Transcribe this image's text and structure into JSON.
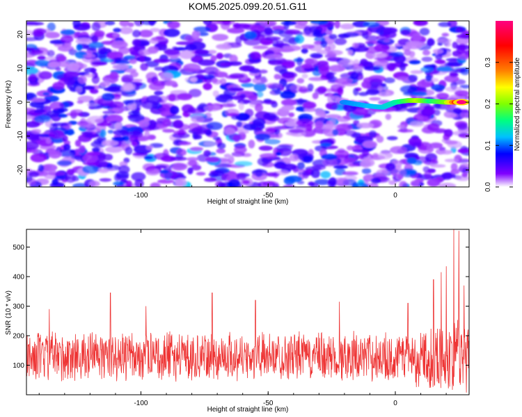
{
  "title": "KOM5.2025.099.20.51.G11",
  "chart_data": [
    {
      "type": "heatmap",
      "xlabel": "Height of straight line (km)",
      "ylabel": "Frequency (Hz)",
      "xlim": [
        -145,
        29
      ],
      "ylim": [
        -25,
        24
      ],
      "x_ticks": [
        -100,
        -50,
        0
      ],
      "y_ticks": [
        -20,
        -10,
        0,
        10,
        20
      ],
      "colorbar": {
        "label": "Normalized spectral amplitude",
        "range": [
          0.0,
          0.4
        ],
        "ticks": [
          0.0,
          0.1,
          0.2,
          0.3
        ],
        "tick_labels": [
          "0.0",
          "0.1",
          "0.2",
          "0.3"
        ],
        "colors": [
          "#ffffff",
          "#8000ff",
          "#0000ff",
          "#00c0ff",
          "#00ff80",
          "#80ff00",
          "#ffff00",
          "#ff8000",
          "#ff0000",
          "#ff0080"
        ]
      },
      "background_level": 0.05,
      "signal_track": [
        {
          "x": -20,
          "y": 0.0,
          "amp": 0.12
        },
        {
          "x": -12,
          "y": -1.0,
          "amp": 0.13
        },
        {
          "x": -5,
          "y": -1.5,
          "amp": 0.14
        },
        {
          "x": 0,
          "y": 0.0,
          "amp": 0.16
        },
        {
          "x": 5,
          "y": 0.5,
          "amp": 0.2
        },
        {
          "x": 9,
          "y": 0.5,
          "amp": 0.24
        },
        {
          "x": 14,
          "y": 0.3,
          "amp": 0.18
        },
        {
          "x": 20,
          "y": 0.0,
          "amp": 0.22
        },
        {
          "x": 26,
          "y": 0.0,
          "amp": 0.4
        }
      ]
    },
    {
      "type": "line",
      "xlabel": "Height of straight line (km)",
      "ylabel": "SNR (10 * v/v)",
      "xlim": [
        -145,
        29
      ],
      "ylim": [
        0,
        560
      ],
      "x_ticks": [
        -100,
        -50,
        0
      ],
      "y_ticks": [
        100,
        200,
        300,
        400,
        500
      ],
      "series": [
        {
          "color": "#ee3333",
          "baseline_mean": 130,
          "baseline_spread": 70,
          "peaks": [
            {
              "x": -136,
              "y": 290
            },
            {
              "x": -112,
              "y": 345
            },
            {
              "x": -98,
              "y": 300
            },
            {
              "x": -72,
              "y": 345
            },
            {
              "x": -55,
              "y": 320
            },
            {
              "x": -22,
              "y": 315
            },
            {
              "x": 5,
              "y": 310
            },
            {
              "x": 15,
              "y": 390
            },
            {
              "x": 18,
              "y": 415
            },
            {
              "x": 20,
              "y": 435
            },
            {
              "x": 23,
              "y": 560
            },
            {
              "x": 25,
              "y": 555
            },
            {
              "x": 27,
              "y": 370
            }
          ]
        }
      ]
    }
  ]
}
